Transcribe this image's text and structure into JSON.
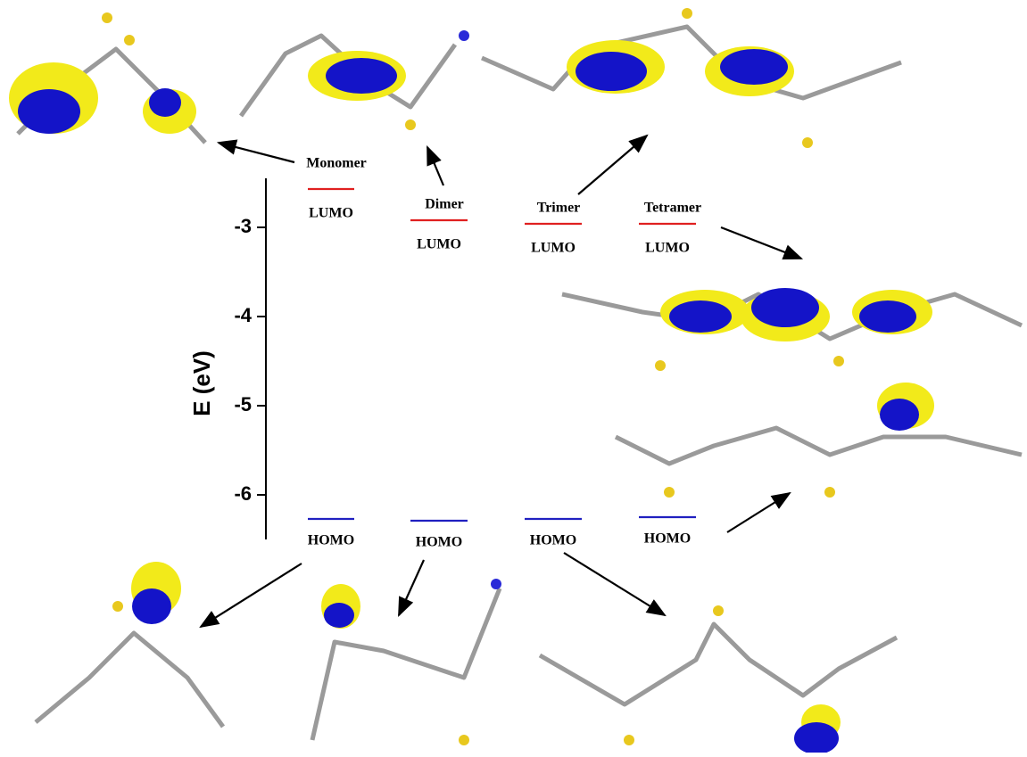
{
  "chart_data": {
    "type": "energy-levels",
    "ylabel": "E (eV)",
    "ylim": [
      -6.5,
      -2.45
    ],
    "yticks": [
      -3,
      -4,
      -5,
      -6
    ],
    "categories": [
      "Monomer",
      "Dimer",
      "Trimer",
      "Tetramer"
    ],
    "series": [
      {
        "name": "LUMO",
        "color": "#e02020",
        "values": [
          -2.57,
          -2.92,
          -2.96,
          -2.96
        ]
      },
      {
        "name": "HOMO",
        "color": "#2020c0",
        "values": [
          -6.27,
          -6.29,
          -6.27,
          -6.25
        ]
      }
    ]
  }
}
